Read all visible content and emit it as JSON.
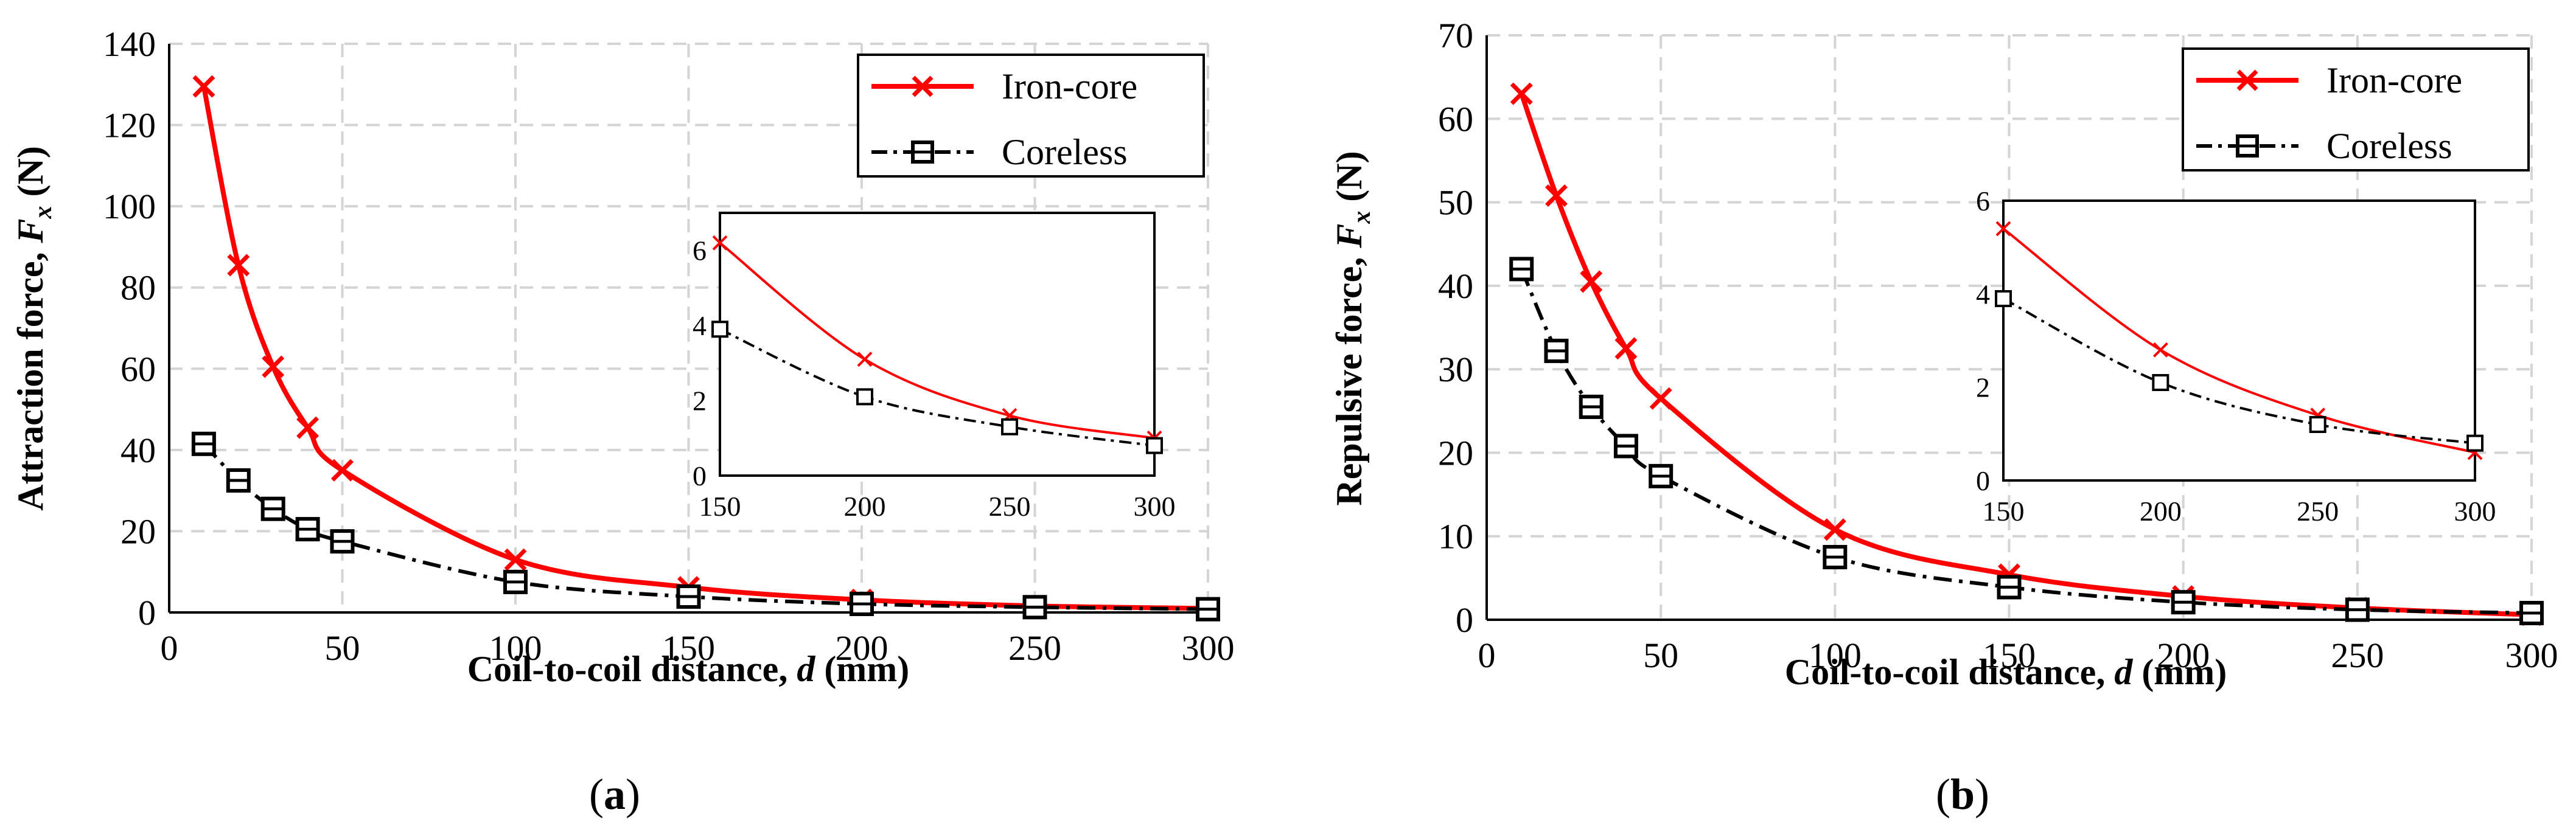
{
  "chart_data": [
    {
      "panel": "(a)",
      "panel_letter": "a",
      "type": "line",
      "ylabel_prefix": "Attraction force, ",
      "ylabel_var": "F",
      "ylabel_sub": "x",
      "ylabel_unit": " (N)",
      "xlabel_prefix": "Coil-to-coil distance, ",
      "xlabel_var": "d",
      "xlabel_unit": " (mm)",
      "xlim": [
        0,
        300
      ],
      "ylim": [
        0,
        140
      ],
      "xticks": [
        0,
        50,
        100,
        150,
        200,
        250,
        300
      ],
      "yticks": [
        0,
        20,
        40,
        60,
        80,
        100,
        120,
        140
      ],
      "grid": true,
      "legend": "top-right",
      "series": [
        {
          "name": "Iron-core",
          "color": "#ff0000",
          "marker": "x",
          "x": [
            10,
            20,
            30,
            40,
            50,
            100,
            150,
            200,
            250,
            300
          ],
          "y": [
            129.5,
            85.5,
            60.5,
            45.5,
            35,
            13,
            6.2,
            3.1,
            1.6,
            1.0
          ]
        },
        {
          "name": "Coreless",
          "color": "#000000",
          "marker": "square",
          "x": [
            10,
            20,
            30,
            40,
            50,
            100,
            150,
            200,
            250,
            300
          ],
          "y": [
            41.5,
            32.5,
            25.5,
            20.5,
            17.5,
            7.5,
            3.9,
            2.1,
            1.3,
            0.8
          ]
        }
      ],
      "inset": {
        "xlim": [
          150,
          300
        ],
        "ylim": [
          0,
          7
        ],
        "xticks": [
          150,
          200,
          250,
          300
        ],
        "yticks": [
          0,
          2,
          4,
          6
        ],
        "series": [
          {
            "name": "Iron-core",
            "color": "#ff0000",
            "x": [
              150,
              200,
              250,
              300
            ],
            "y": [
              6.2,
              3.1,
              1.6,
              1.0
            ]
          },
          {
            "name": "Coreless",
            "color": "#000000",
            "x": [
              150,
              200,
              250,
              300
            ],
            "y": [
              3.9,
              2.1,
              1.3,
              0.8
            ]
          }
        ]
      }
    },
    {
      "panel": "(b)",
      "panel_letter": "b",
      "type": "line",
      "ylabel_prefix": "Repulsive force, ",
      "ylabel_var": "F",
      "ylabel_sub": "x",
      "ylabel_unit": " (N)",
      "xlabel_prefix": "Coil-to-coil distance, ",
      "xlabel_var": "d",
      "xlabel_unit": " (mm)",
      "xlim": [
        0,
        300
      ],
      "ylim": [
        0,
        70
      ],
      "xticks": [
        0,
        50,
        100,
        150,
        200,
        250,
        300
      ],
      "yticks": [
        0,
        10,
        20,
        30,
        40,
        50,
        60,
        70
      ],
      "grid": true,
      "legend": "top-right",
      "series": [
        {
          "name": "Iron-core",
          "color": "#ff0000",
          "marker": "x",
          "x": [
            10,
            20,
            30,
            40,
            50,
            100,
            150,
            200,
            250,
            300
          ],
          "y": [
            63,
            50.8,
            40.5,
            32.5,
            26.5,
            10.8,
            5.4,
            2.8,
            1.4,
            0.6
          ]
        },
        {
          "name": "Coreless",
          "color": "#000000",
          "marker": "square",
          "x": [
            10,
            20,
            30,
            40,
            50,
            100,
            150,
            200,
            250,
            300
          ],
          "y": [
            42,
            32.2,
            25.5,
            20.8,
            17.2,
            7.5,
            3.9,
            2.1,
            1.2,
            0.8
          ]
        }
      ],
      "inset": {
        "xlim": [
          150,
          300
        ],
        "ylim": [
          0,
          6
        ],
        "xticks": [
          150,
          200,
          250,
          300
        ],
        "yticks": [
          0,
          2,
          4,
          6
        ],
        "series": [
          {
            "name": "Iron-core",
            "color": "#ff0000",
            "x": [
              150,
              200,
              250,
              300
            ],
            "y": [
              5.4,
              2.8,
              1.4,
              0.6
            ]
          },
          {
            "name": "Coreless",
            "color": "#000000",
            "x": [
              150,
              200,
              250,
              300
            ],
            "y": [
              3.9,
              2.1,
              1.2,
              0.8
            ]
          }
        ]
      }
    }
  ]
}
